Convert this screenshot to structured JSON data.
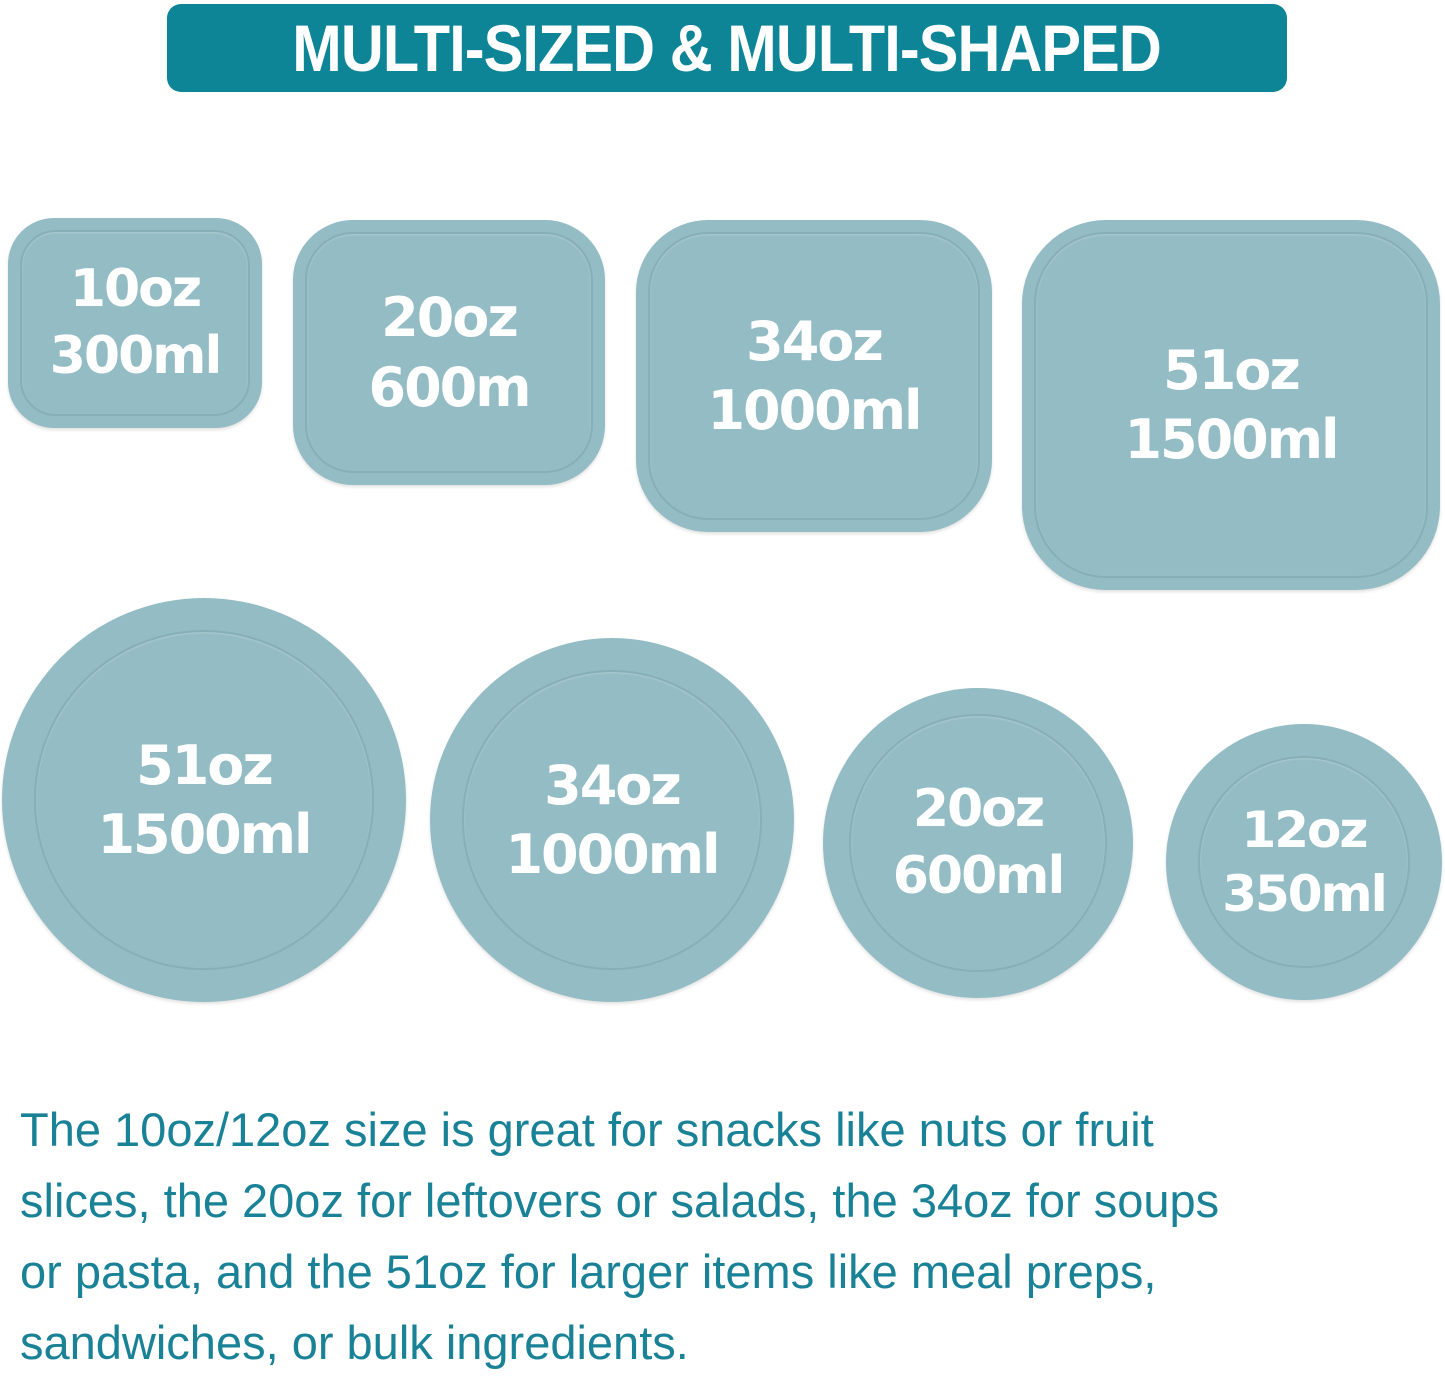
{
  "title": "MULTI-SIZED & MULTI-SHAPED",
  "colors": {
    "banner": "#0e8596",
    "lid": "#93bcc4",
    "text": "#1a8296"
  },
  "rectangular_lids": [
    {
      "oz": "10oz",
      "ml": "300ml"
    },
    {
      "oz": "20oz",
      "ml": "600m"
    },
    {
      "oz": "34oz",
      "ml": "1000ml"
    },
    {
      "oz": "51oz",
      "ml": "1500ml"
    }
  ],
  "round_lids": [
    {
      "oz": "51oz",
      "ml": "1500ml"
    },
    {
      "oz": "34oz",
      "ml": "1000ml"
    },
    {
      "oz": "20oz",
      "ml": "600ml"
    },
    {
      "oz": "12oz",
      "ml": "350ml"
    }
  ],
  "description": [
    "The 10oz/12oz size is great for snacks like nuts or fruit",
    "slices, the 20oz for leftovers or salads, the 34oz for soups",
    "or pasta, and the 51oz for larger items like meal preps,",
    "sandwiches, or bulk ingredients."
  ]
}
